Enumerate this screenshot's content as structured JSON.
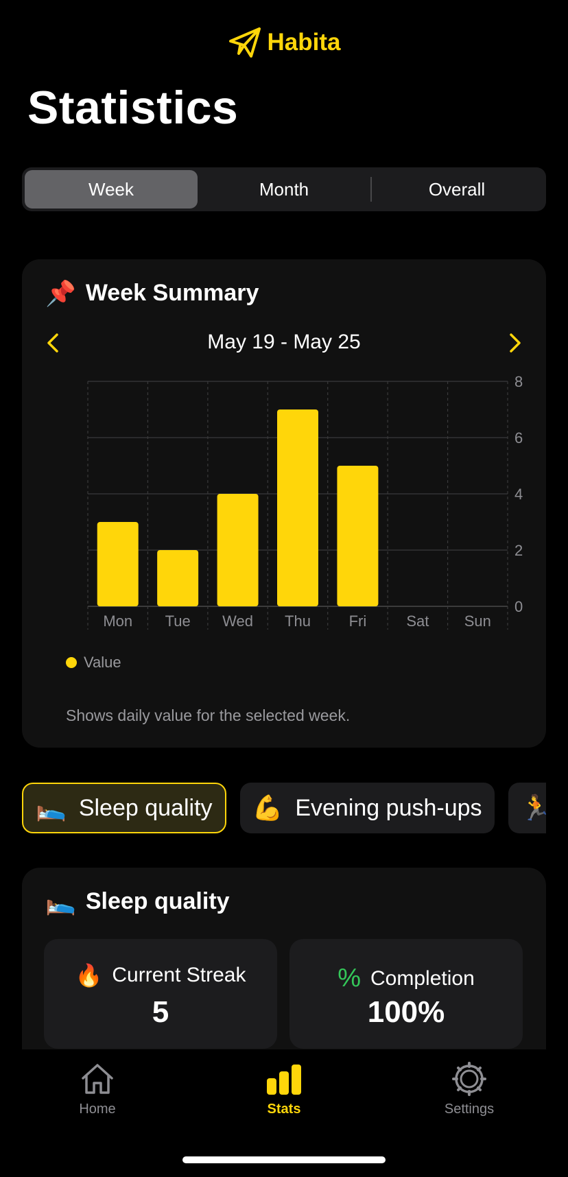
{
  "app": {
    "name": "Habita",
    "accent": "#FFD60A"
  },
  "page": {
    "title": "Statistics"
  },
  "segments": {
    "items": [
      "Week",
      "Month",
      "Overall"
    ],
    "selected": "Week"
  },
  "summary": {
    "title": "Week Summary",
    "title_icon": "pushpin-icon",
    "range": "May 19 - May 25",
    "legend": "Value",
    "note": "Shows daily value for the selected week."
  },
  "chart_data": {
    "type": "bar",
    "categories": [
      "Mon",
      "Tue",
      "Wed",
      "Thu",
      "Fri",
      "Sat",
      "Sun"
    ],
    "values": [
      3,
      2,
      4,
      7,
      5,
      0,
      0
    ],
    "series": [
      {
        "name": "Value",
        "values": [
          3,
          2,
          4,
          7,
          5,
          0,
          0
        ],
        "color": "#FFD60A"
      }
    ],
    "ylim": [
      0,
      8
    ],
    "yticks": [
      0,
      2,
      4,
      6,
      8
    ],
    "grid": true,
    "legend": "bottom-left"
  },
  "habits": [
    {
      "emoji": "🛌",
      "label": "Sleep quality",
      "active": true
    },
    {
      "emoji": "💪",
      "label": "Evening push-ups",
      "active": false
    },
    {
      "emoji": "🏃",
      "label": "",
      "active": false
    }
  ],
  "habit_detail": {
    "emoji": "🛌",
    "title": "Sleep quality",
    "streak_label": "Current Streak",
    "streak_value": "5",
    "completion_label": "Completion",
    "completion_value": "100%"
  },
  "tabs": [
    {
      "label": "Home",
      "icon": "house-icon"
    },
    {
      "label": "Stats",
      "icon": "bar-chart-icon",
      "active": true
    },
    {
      "label": "Settings",
      "icon": "gear-icon"
    }
  ]
}
